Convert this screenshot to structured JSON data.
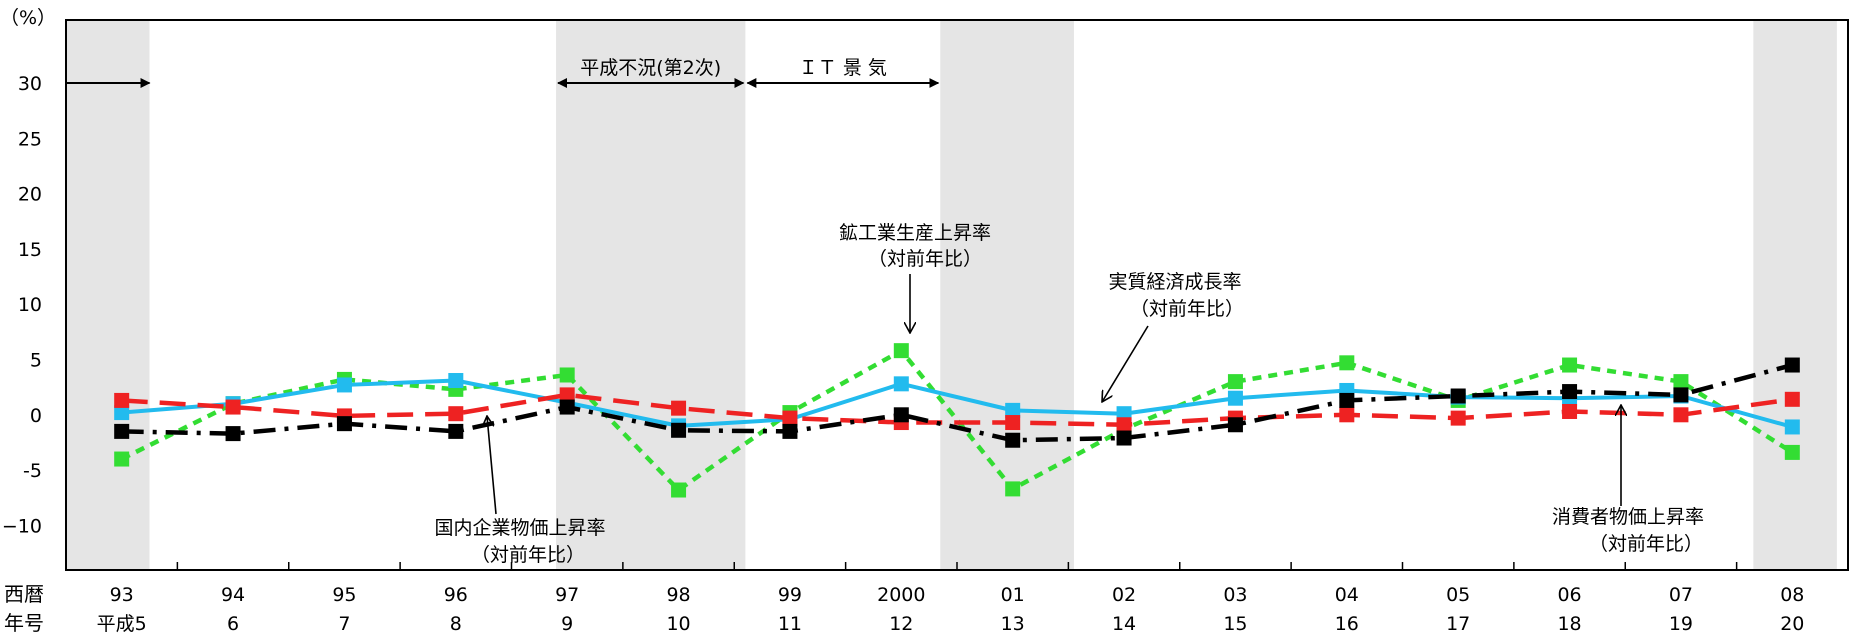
{
  "chart_data": {
    "type": "line",
    "y_unit_label": "（%）",
    "ylim": [
      -15,
      35
    ],
    "y_ticks": [
      30,
      25,
      20,
      15,
      10,
      5,
      0,
      -5,
      -10
    ],
    "y_tick_labels": [
      "30",
      "25",
      "20",
      "15",
      "10",
      "5",
      "0",
      "-5",
      "−10"
    ],
    "row_labels": {
      "western": "西暦",
      "era": "年号"
    },
    "categories_western": [
      "93",
      "94",
      "95",
      "96",
      "97",
      "98",
      "99",
      "2000",
      "01",
      "02",
      "03",
      "04",
      "05",
      "06",
      "07",
      "08"
    ],
    "categories_era": [
      "平成5",
      "6",
      "7",
      "8",
      "9",
      "10",
      "11",
      "12",
      "13",
      "14",
      "15",
      "16",
      "17",
      "18",
      "19",
      "20"
    ],
    "recession_bands": [
      [
        -0.5,
        0.25
      ],
      [
        3.9,
        5.6
      ],
      [
        7.35,
        8.55
      ],
      [
        14.65,
        15.4
      ]
    ],
    "periods": [
      {
        "label": "平成不況(第2次)",
        "from": 3.9,
        "to": 5.6
      },
      {
        "label": "ＩＴ 景 気",
        "from": 5.6,
        "to": 7.35
      }
    ],
    "series": [
      {
        "name": "鉱工業生産上昇率 (対前年比)",
        "color": "#33dd33",
        "style": "dashed-short",
        "values": [
          -4.0,
          1.0,
          3.2,
          2.3,
          3.6,
          -6.8,
          0.2,
          5.8,
          -6.7,
          -1.3,
          3.0,
          4.7,
          1.3,
          4.5,
          3.0,
          -3.4
        ]
      },
      {
        "name": "実質経済成長率 (対前年比)",
        "color": "#22bbee",
        "style": "solid",
        "values": [
          0.2,
          1.0,
          2.7,
          3.1,
          1.1,
          -1.0,
          -0.4,
          2.8,
          0.4,
          0.1,
          1.5,
          2.2,
          1.6,
          1.5,
          1.7,
          -1.1
        ]
      },
      {
        "name": "消費者物価上昇率 (対前年比)",
        "color": "#ee2222",
        "style": "dashed-long",
        "values": [
          1.3,
          0.7,
          -0.1,
          0.1,
          1.8,
          0.6,
          -0.3,
          -0.7,
          -0.7,
          -0.9,
          -0.3,
          0.0,
          -0.3,
          0.3,
          0.0,
          1.4
        ]
      },
      {
        "name": "国内企業物価上昇率 (対前年比)",
        "color": "#000000",
        "style": "dash-dot",
        "values": [
          -1.5,
          -1.7,
          -0.8,
          -1.5,
          0.7,
          -1.4,
          -1.5,
          0.0,
          -2.3,
          -2.1,
          -0.9,
          1.3,
          1.7,
          2.1,
          1.8,
          4.5
        ]
      }
    ],
    "annotations": [
      {
        "line1": "鉱工業生産上昇率",
        "line2": "（対前年比）"
      },
      {
        "line1": "実質経済成長率",
        "line2": "（対前年比）"
      },
      {
        "line1": "国内企業物価上昇率",
        "line2": "（対前年比）"
      },
      {
        "line1": "消費者物価上昇率",
        "line2": "（対前年比）"
      }
    ]
  }
}
